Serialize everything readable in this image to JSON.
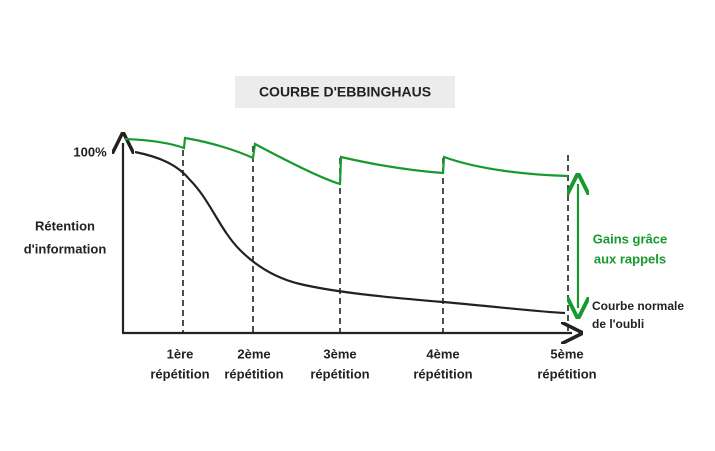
{
  "title": "COURBE D'EBBINGHAUS",
  "y_axis": {
    "top_label": "100%",
    "label_lines": [
      "Rétention",
      "d'information"
    ]
  },
  "repetitions": [
    {
      "lines": [
        "1ère",
        "répétition"
      ]
    },
    {
      "lines": [
        "2ème",
        "répétition"
      ]
    },
    {
      "lines": [
        "3ème",
        "répétition"
      ]
    },
    {
      "lines": [
        "4ème",
        "répétition"
      ]
    },
    {
      "lines": [
        "5ème",
        "répétition"
      ]
    }
  ],
  "gain_label": [
    "Gains grâce",
    "aux rappels"
  ],
  "normal_curve_label": [
    "Courbe normale",
    "de l'oubli"
  ]
}
